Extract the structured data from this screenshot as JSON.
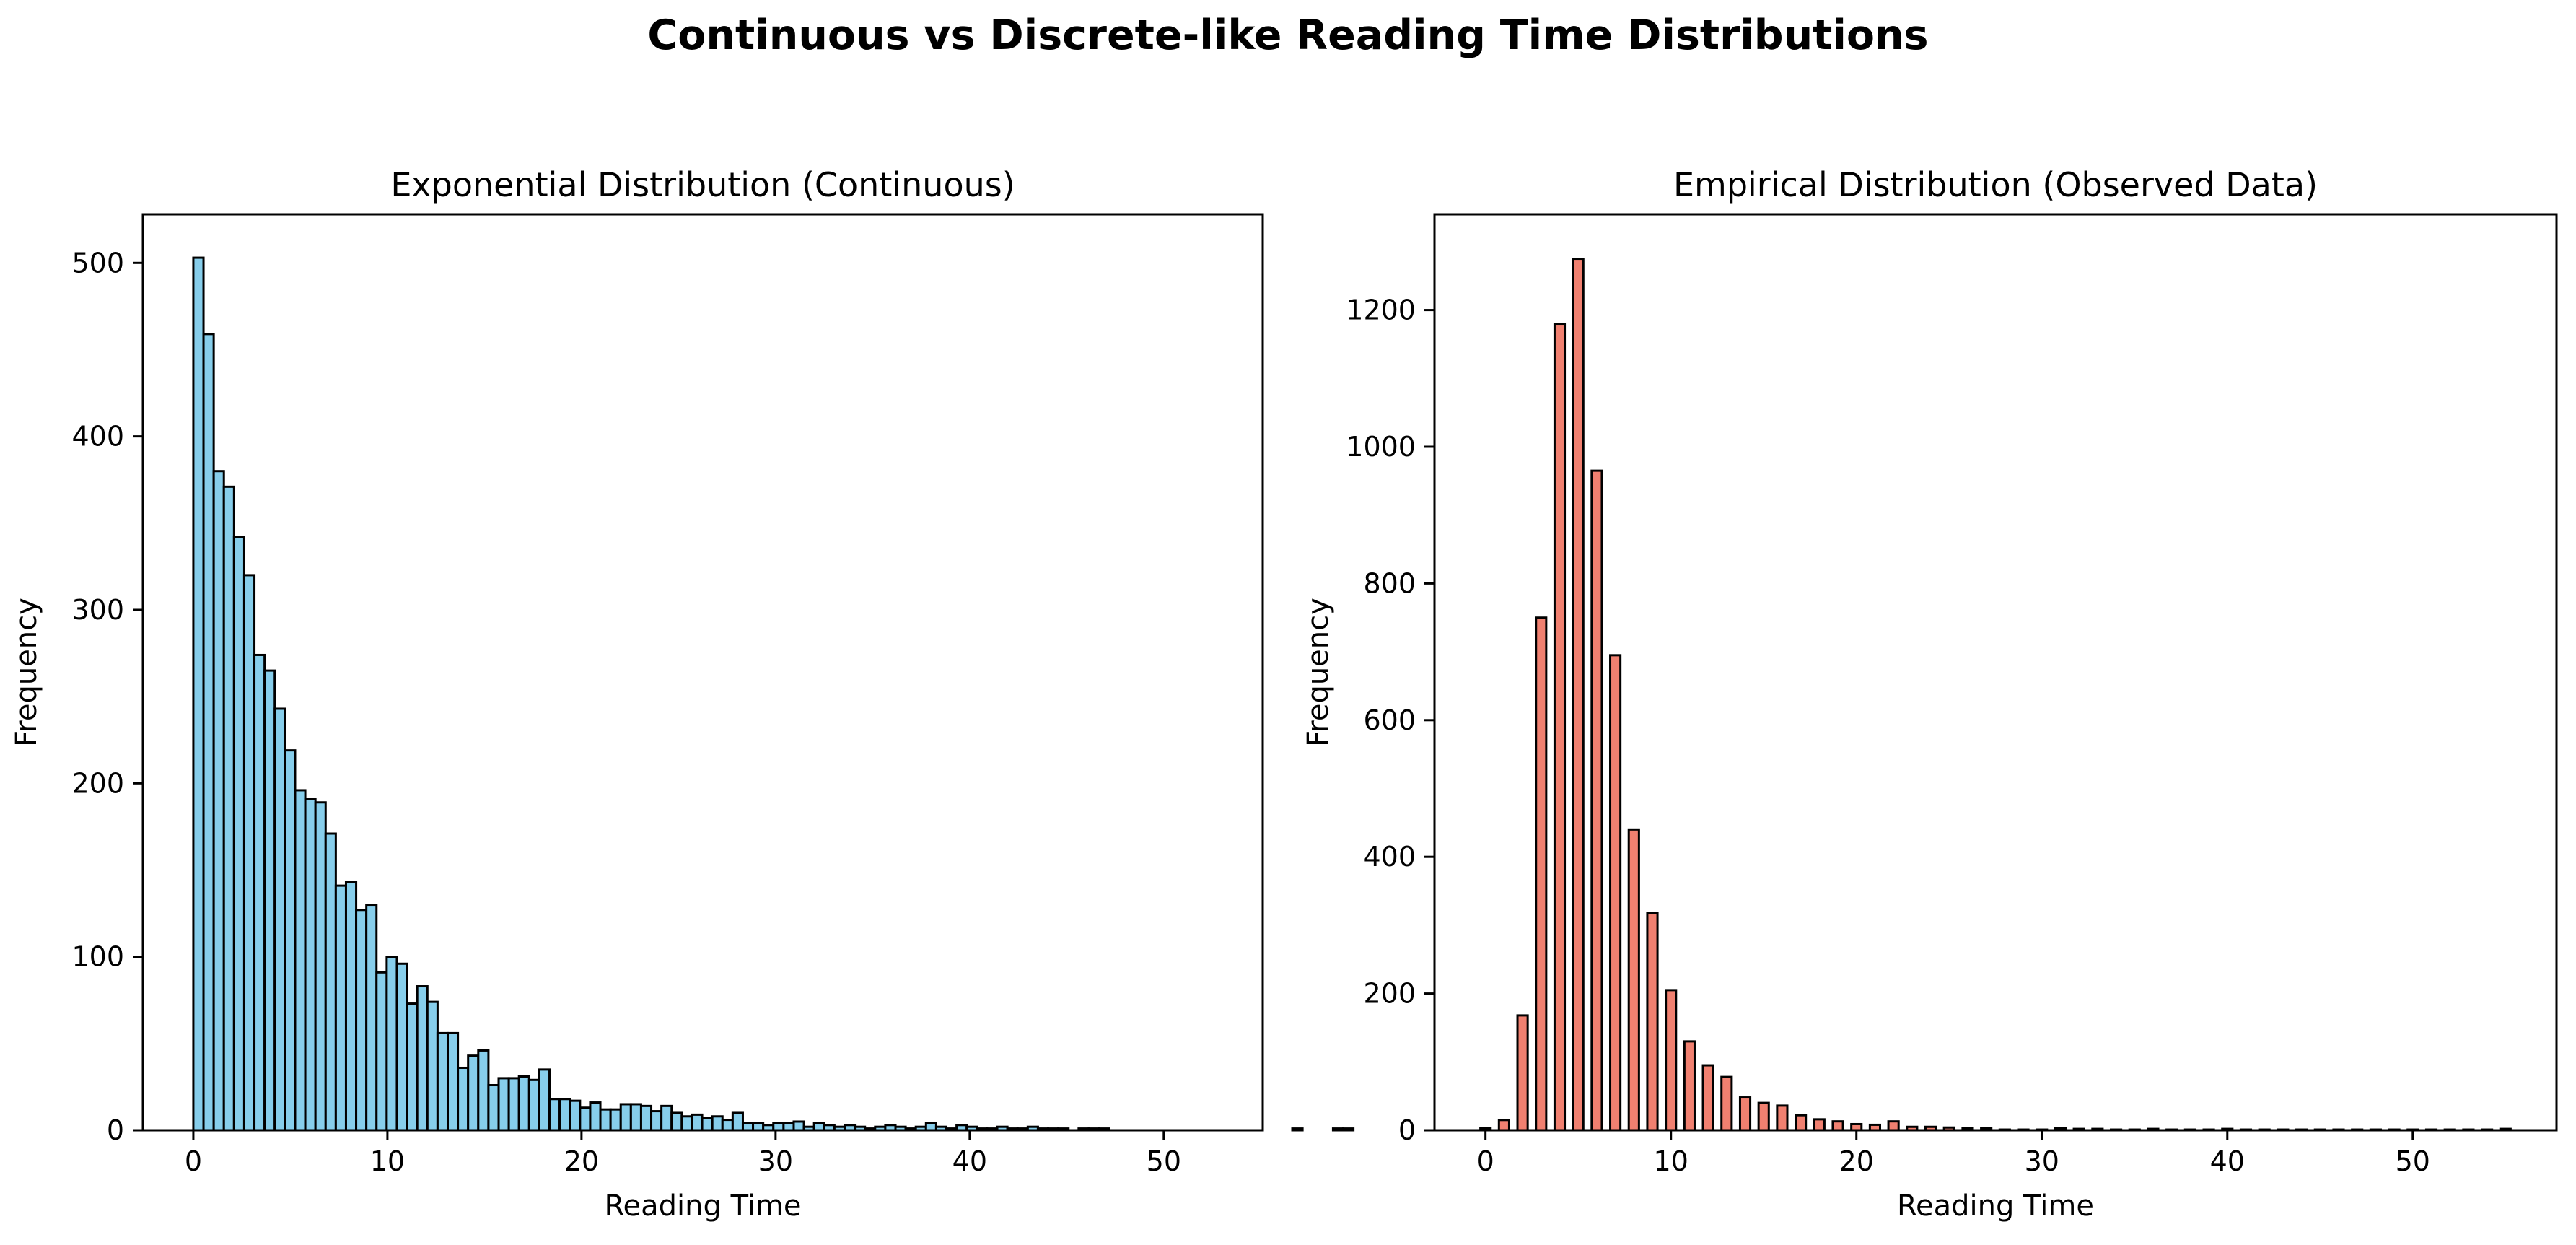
{
  "suptitle": "Continuous vs Discrete-like Reading Time Distributions",
  "chart_data": [
    {
      "type": "bar",
      "title": "Exponential Distribution (Continuous)",
      "xlabel": "Reading Time",
      "ylabel": "Frequency",
      "color": "#87ceeb",
      "edge_color": "#000000",
      "xlim": [
        -2.6,
        55.1
      ],
      "ylim": [
        0,
        528
      ],
      "xticks": [
        0,
        10,
        20,
        30,
        40,
        50
      ],
      "yticks": [
        0,
        100,
        200,
        300,
        400,
        500
      ],
      "bin_width": 0.5243,
      "x_start": 0,
      "values": [
        503,
        459,
        380,
        371,
        342,
        320,
        274,
        265,
        243,
        219,
        196,
        191,
        189,
        171,
        141,
        143,
        127,
        130,
        91,
        100,
        96,
        73,
        83,
        74,
        56,
        56,
        36,
        43,
        46,
        26,
        30,
        30,
        31,
        29,
        35,
        18,
        18,
        17,
        13,
        16,
        12,
        12,
        15,
        15,
        14,
        11,
        14,
        10,
        8,
        9,
        7,
        8,
        6,
        10,
        4,
        4,
        3,
        4,
        4,
        5,
        2,
        4,
        3,
        2,
        3,
        2,
        1,
        2,
        3,
        2,
        1,
        2,
        4,
        2,
        1,
        3,
        2,
        1,
        1,
        2,
        1,
        1,
        2,
        1,
        1,
        1,
        0,
        1,
        1,
        1,
        0,
        0,
        0,
        0,
        0,
        0,
        0,
        0,
        0,
        0,
        0,
        0,
        0,
        0,
        0,
        0,
        0,
        0,
        1,
        0,
        0,
        0,
        1,
        1
      ]
    },
    {
      "type": "bar",
      "title": "Empirical Distribution (Observed Data)",
      "xlabel": "Reading Time",
      "ylabel": "Frequency",
      "color": "#f08070",
      "edge_color": "#000000",
      "xlim": [
        -2.75,
        57.75
      ],
      "ylim": [
        0,
        1340
      ],
      "xticks": [
        0,
        10,
        20,
        30,
        40,
        50
      ],
      "yticks": [
        0,
        200,
        400,
        600,
        800,
        1000,
        1200
      ],
      "bar_width": 0.55,
      "categories": [
        0,
        1,
        2,
        3,
        4,
        5,
        6,
        7,
        8,
        9,
        10,
        11,
        12,
        13,
        14,
        15,
        16,
        17,
        18,
        19,
        20,
        21,
        22,
        23,
        24,
        25,
        26,
        27,
        28,
        29,
        30,
        31,
        32,
        33,
        34,
        35,
        36,
        37,
        38,
        39,
        40,
        41,
        42,
        43,
        44,
        45,
        46,
        47,
        48,
        49,
        50,
        51,
        52,
        53,
        54,
        55
      ],
      "values": [
        3,
        15,
        168,
        750,
        1180,
        1275,
        965,
        695,
        440,
        318,
        205,
        130,
        95,
        78,
        48,
        40,
        36,
        22,
        16,
        13,
        9,
        8,
        13,
        5,
        5,
        4,
        3,
        3,
        1,
        1,
        1,
        3,
        2,
        2,
        1,
        1,
        2,
        1,
        1,
        1,
        2,
        1,
        1,
        1,
        1,
        1,
        1,
        1,
        1,
        1,
        1,
        1,
        1,
        1,
        1,
        2
      ]
    }
  ]
}
